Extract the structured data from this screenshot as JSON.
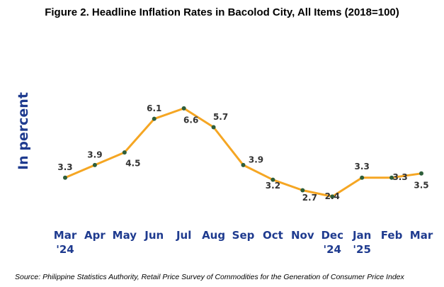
{
  "title": "Figure 2. Headline Inflation Rates in Bacolod City, All Items (2018=100)",
  "source": "Source: Philippine Statistics Authority, Retail Price Survey of Commodities for the Generation of Consumer Price Index",
  "colors": {
    "line": "#f5a623",
    "marker": "#2e5e3a",
    "axis_text": "#1f3b8f",
    "value_text": "#333333"
  },
  "chart_data": {
    "type": "line",
    "title": "Figure 2. Headline Inflation Rates in Bacolod City, All Items (2018=100)",
    "ylabel": "In percent",
    "xlabel": "",
    "categories": [
      [
        "Mar",
        "'24"
      ],
      [
        "Apr"
      ],
      [
        "May"
      ],
      [
        "Jun"
      ],
      [
        "Jul"
      ],
      [
        "Aug"
      ],
      [
        "Sep"
      ],
      [
        "Oct"
      ],
      [
        "Nov"
      ],
      [
        "Dec",
        "'24"
      ],
      [
        "Jan",
        "'25"
      ],
      [
        "Feb"
      ],
      [
        "Mar"
      ]
    ],
    "values": [
      3.3,
      3.9,
      4.5,
      6.1,
      6.6,
      5.7,
      3.9,
      3.2,
      2.7,
      2.4,
      3.3,
      3.3,
      3.5
    ],
    "ylim": [
      1.3,
      7.0
    ],
    "grid": false,
    "legend": "none"
  }
}
